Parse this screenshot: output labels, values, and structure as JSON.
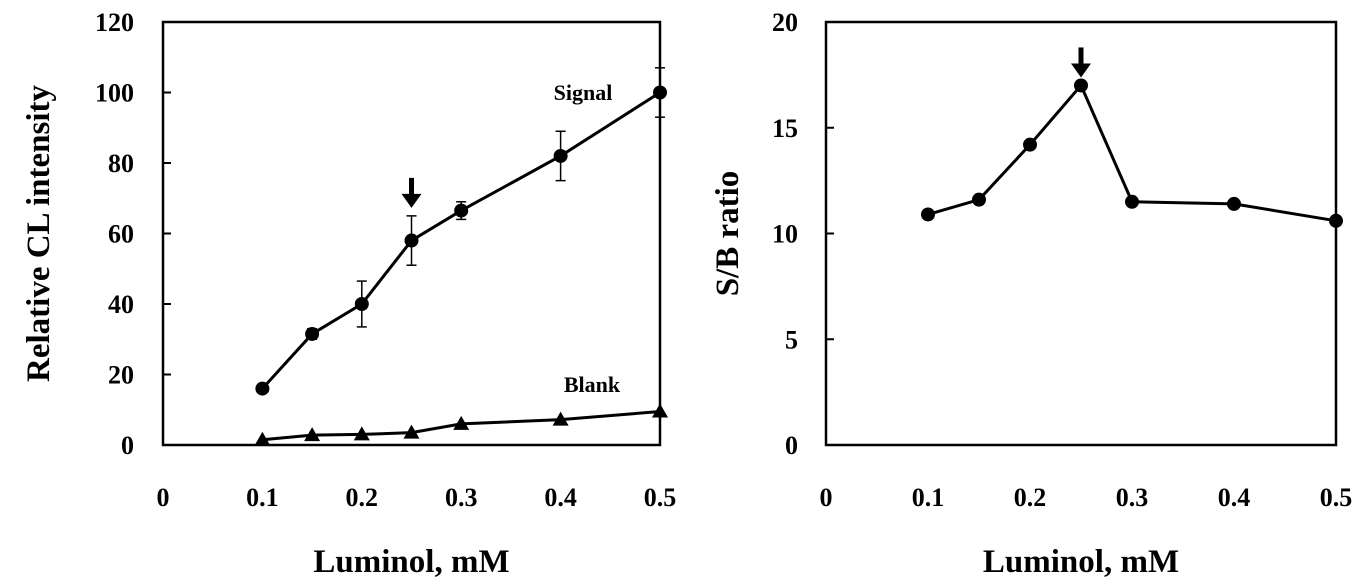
{
  "chart_data": [
    {
      "type": "line",
      "xlabel": "Luminol, mM",
      "ylabel": "Relative CL intensity",
      "xlim": [
        0,
        0.5
      ],
      "ylim": [
        0,
        120
      ],
      "xticks": [
        "0",
        "0.1",
        "0.2",
        "0.3",
        "0.4",
        "0.5"
      ],
      "xtick_values": [
        0,
        0.1,
        0.2,
        0.3,
        0.4,
        0.5
      ],
      "yticks": [
        "0",
        "20",
        "40",
        "60",
        "80",
        "100",
        "120"
      ],
      "ytick_values": [
        0,
        20,
        40,
        60,
        80,
        100,
        120
      ],
      "grid": false,
      "series": [
        {
          "name": "Signal",
          "marker": "circle",
          "x": [
            0.1,
            0.15,
            0.2,
            0.25,
            0.3,
            0.4,
            0.5
          ],
          "values": [
            16,
            31.5,
            40,
            58,
            66.5,
            82,
            100
          ],
          "error": [
            0,
            1.5,
            6.5,
            7,
            2.5,
            7,
            7
          ]
        },
        {
          "name": "Blank",
          "marker": "triangle",
          "x": [
            0.1,
            0.15,
            0.2,
            0.25,
            0.3,
            0.4,
            0.5
          ],
          "values": [
            1.5,
            2.8,
            3,
            3.5,
            6,
            7.2,
            9.5
          ]
        }
      ],
      "annotations": [
        {
          "type": "down-arrow",
          "x": 0.25
        }
      ]
    },
    {
      "type": "line",
      "xlabel": "Luminol, mM",
      "ylabel": "S/B ratio",
      "xlim": [
        0,
        0.5
      ],
      "ylim": [
        0,
        20
      ],
      "xticks": [
        "0",
        "0.1",
        "0.2",
        "0.3",
        "0.4",
        "0.5"
      ],
      "xtick_values": [
        0,
        0.1,
        0.2,
        0.3,
        0.4,
        0.5
      ],
      "yticks": [
        "0",
        "5",
        "10",
        "15",
        "20"
      ],
      "ytick_values": [
        0,
        5,
        10,
        15,
        20
      ],
      "grid": false,
      "series": [
        {
          "marker": "circle",
          "x": [
            0.1,
            0.15,
            0.2,
            0.25,
            0.3,
            0.4,
            0.5
          ],
          "values": [
            10.9,
            11.6,
            14.2,
            17,
            11.5,
            11.4,
            10.6
          ]
        }
      ],
      "annotations": [
        {
          "type": "down-arrow",
          "x": 0.25
        }
      ]
    }
  ]
}
